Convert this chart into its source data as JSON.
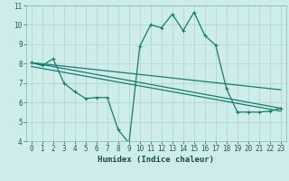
{
  "xlabel": "Humidex (Indice chaleur)",
  "bg_color": "#ceecea",
  "grid_color": "#b0d8d4",
  "line_color": "#1a7a6e",
  "xlim": [
    -0.5,
    23.5
  ],
  "ylim": [
    4,
    11
  ],
  "xticks": [
    0,
    1,
    2,
    3,
    4,
    5,
    6,
    7,
    8,
    9,
    10,
    11,
    12,
    13,
    14,
    15,
    16,
    17,
    18,
    19,
    20,
    21,
    22,
    23
  ],
  "yticks": [
    4,
    5,
    6,
    7,
    8,
    9,
    10,
    11
  ],
  "line1_x": [
    0,
    1,
    2,
    3,
    4,
    5,
    6,
    7,
    8,
    9,
    10,
    11,
    12,
    13,
    14,
    15,
    16,
    17,
    18,
    19,
    20,
    21,
    22,
    23
  ],
  "line1_y": [
    8.05,
    7.9,
    8.25,
    7.0,
    6.55,
    6.2,
    6.25,
    6.25,
    4.6,
    3.9,
    8.9,
    10.0,
    9.85,
    10.55,
    9.7,
    10.65,
    9.45,
    8.95,
    6.7,
    5.5,
    5.5,
    5.5,
    5.55,
    5.7
  ],
  "line2_x": [
    0,
    23
  ],
  "line2_y": [
    8.05,
    6.65
  ],
  "line3_x": [
    0,
    23
  ],
  "line3_y": [
    8.05,
    5.7
  ],
  "line4_x": [
    0,
    23
  ],
  "line4_y": [
    7.85,
    5.55
  ],
  "marker_size": 3.0,
  "linewidth": 0.9,
  "tick_fontsize": 5.5,
  "xlabel_fontsize": 6.5
}
